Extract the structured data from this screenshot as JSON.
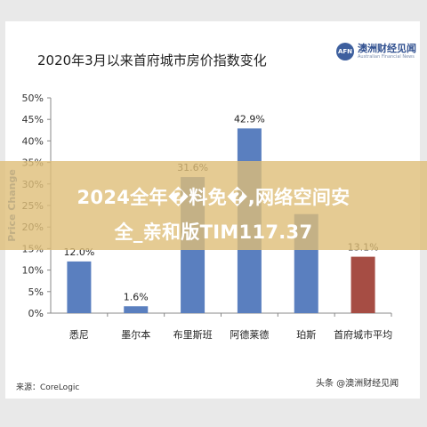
{
  "header": {
    "title": "2020年3月以来首府城市房价指数变化",
    "logo_abbr": "AFN",
    "logo_name": "澳洲财经见闻",
    "logo_sub": "Australian Financial News"
  },
  "footer": {
    "source": "来源：CoreLogic",
    "watermark": "头条 @澳洲财经见闻"
  },
  "banner": {
    "line1": "2024全年�料免�,网络空间安",
    "line2": "全_亲和版TIM117.37"
  },
  "chart_data": {
    "type": "bar",
    "ylabel": "Price Change",
    "ylim": [
      0,
      50
    ],
    "yticks": [
      "0%",
      "5%",
      "10%",
      "15%",
      "20%",
      "25%",
      "30%",
      "35%",
      "40%",
      "45%",
      "50%"
    ],
    "categories": [
      "悉尼",
      "墨尔本",
      "布里斯班",
      "阿德莱德",
      "珀斯",
      "首府城市平均"
    ],
    "values": [
      12.0,
      1.6,
      31.6,
      42.9,
      23.0,
      13.1
    ],
    "value_labels": [
      "12.0%",
      "1.6%",
      "31.6%",
      "42.9%",
      "",
      "13.1%"
    ],
    "colors": [
      "#5a7fbf",
      "#5a7fbf",
      "#5a7fbf",
      "#5a7fbf",
      "#5a7fbf",
      "#a64d44"
    ],
    "grid": false
  }
}
